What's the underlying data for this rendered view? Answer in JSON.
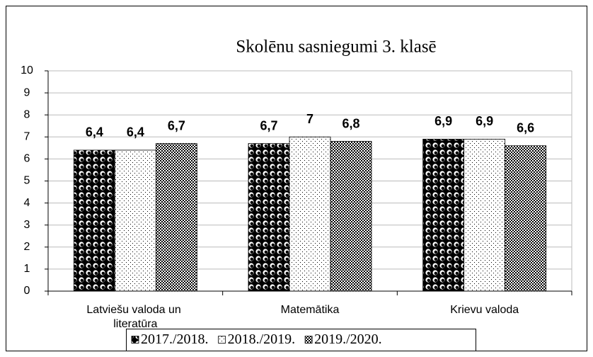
{
  "chart_data": {
    "type": "bar",
    "title": "Skolēnu sasniegumi 3. klasē",
    "categories": [
      "Latviešu valoda un literatūra",
      "Matemātika",
      "Krievu valoda"
    ],
    "series": [
      {
        "name": "2017./2018.",
        "color": "#000000",
        "values": [
          6.4,
          6.7,
          6.9
        ],
        "value_labels": [
          "6,4",
          "6,7",
          "6,9"
        ]
      },
      {
        "name": "2018./2019.",
        "color": "#ffffff",
        "values": [
          6.4,
          7,
          6.9
        ],
        "value_labels": [
          "6,4",
          "7",
          "6,9"
        ]
      },
      {
        "name": "2019./2020.",
        "color": "#000000",
        "values": [
          6.7,
          6.8,
          6.6
        ],
        "value_labels": [
          "6,7",
          "6,8",
          "6,6"
        ]
      }
    ],
    "ylim": [
      0,
      10
    ],
    "yticks": [
      0,
      1,
      2,
      3,
      4,
      5,
      6,
      7,
      8,
      9,
      10
    ],
    "grid": true,
    "legend": "bottom"
  }
}
